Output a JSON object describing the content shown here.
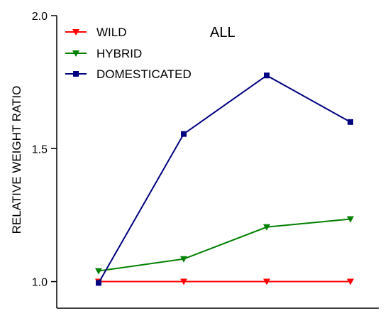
{
  "chart_data": {
    "type": "line",
    "title": "ALL",
    "xlabel": "",
    "ylabel": "RELATIVE WEIGHT RATIO",
    "ylim": [
      0.9,
      2.0
    ],
    "x": [
      1,
      2,
      3,
      4
    ],
    "yticks": [
      1.0,
      1.5,
      2.0
    ],
    "ytick_labels": [
      "1.0",
      "1.5",
      "2.0"
    ],
    "grid": false,
    "legend_position": "top-left",
    "series": [
      {
        "name": "WILD",
        "color": "#ff0000",
        "marker": "triangle-down",
        "values": [
          1.0,
          1.0,
          1.0,
          1.0
        ]
      },
      {
        "name": "HYBRID",
        "color": "#008000",
        "marker": "triangle-down",
        "values": [
          1.04,
          1.085,
          1.205,
          1.235
        ]
      },
      {
        "name": "DOMESTICATED",
        "color": "#000080",
        "marker": "square",
        "values": [
          0.995,
          1.555,
          1.775,
          1.6
        ]
      }
    ]
  }
}
